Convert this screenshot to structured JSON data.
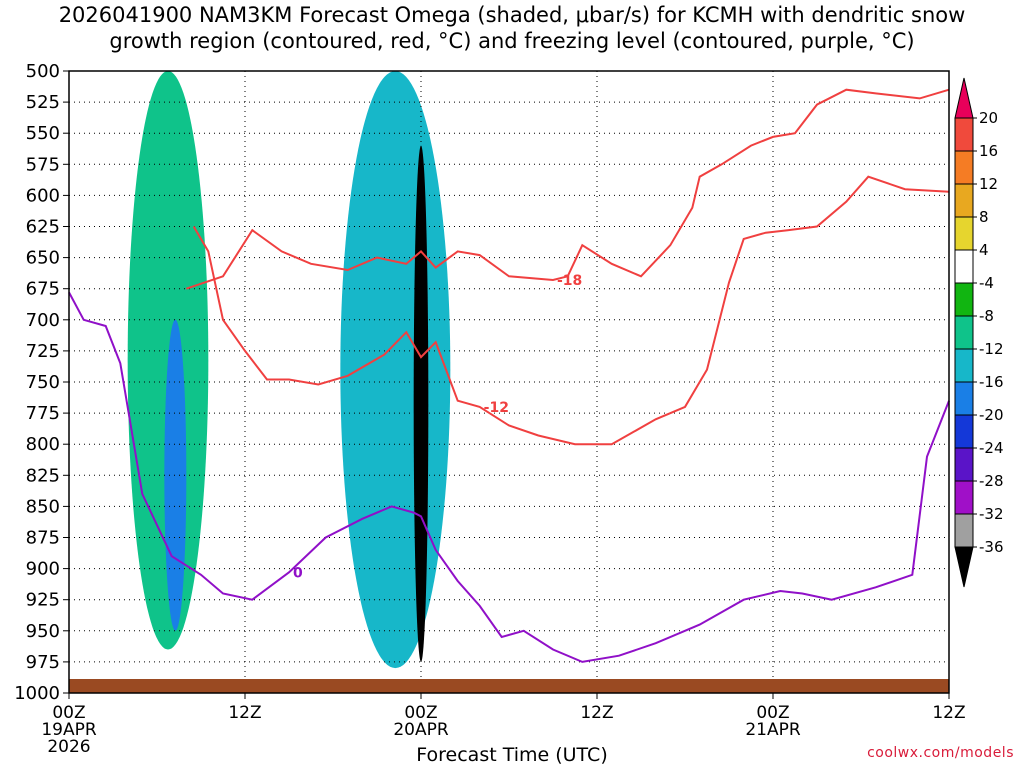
{
  "title": {
    "line1": "2026041900 NAM3KM Forecast Omega (shaded, μbar/s) for KCMH with dendritic snow",
    "line2": "growth region (contoured, red, °C) and freezing level (contoured, purple, °C)"
  },
  "credit": "coolwx.com/models",
  "chart_data": {
    "type": "contour",
    "title": "2026041900 NAM3KM Forecast Omega (shaded, μbar/s) for KCMH with dendritic snow growth region (contoured, red, °C) and freezing level (contoured, purple, °C)",
    "xlabel": "Forecast Time (UTC)",
    "ylabel": "Pressure (hPa)",
    "xlim": [
      0,
      60
    ],
    "ylim": [
      1000,
      500
    ],
    "x_ticks": [
      {
        "hour": 0,
        "lines": [
          "00Z",
          "19APR",
          "2026"
        ]
      },
      {
        "hour": 12,
        "lines": [
          "12Z"
        ]
      },
      {
        "hour": 24,
        "lines": [
          "00Z",
          "20APR"
        ]
      },
      {
        "hour": 36,
        "lines": [
          "12Z"
        ]
      },
      {
        "hour": 48,
        "lines": [
          "00Z",
          "21APR"
        ]
      },
      {
        "hour": 60,
        "lines": [
          "12Z"
        ]
      }
    ],
    "y_ticks": [
      500,
      525,
      550,
      575,
      600,
      625,
      650,
      675,
      700,
      725,
      750,
      775,
      800,
      825,
      850,
      875,
      900,
      925,
      950,
      975,
      1000
    ],
    "colorbar": {
      "unit": "μbar/s",
      "labels": [
        "20",
        "16",
        "12",
        "8",
        "4",
        "-4",
        "-8",
        "-12",
        "-16",
        "-20",
        "-24",
        "-28",
        "-32",
        "-36"
      ],
      "colors": [
        "#e8005a",
        "#f04a3c",
        "#f57c24",
        "#e8a820",
        "#e6d52e",
        "#ffffff",
        "#11b511",
        "#0fc38a",
        "#17b7c9",
        "#1a7fe6",
        "#1438d8",
        "#5a14c8",
        "#a010c8",
        "#a0a0a0",
        "#000000"
      ]
    },
    "omega_regions": [
      {
        "value": -8,
        "x": [
          4.0,
          9.5
        ],
        "p": [
          500,
          965
        ]
      },
      {
        "value": -16,
        "x": [
          6.5,
          8.0
        ],
        "p": [
          700,
          950
        ]
      },
      {
        "value": -12,
        "x": [
          18.5,
          26.0
        ],
        "p": [
          500,
          980
        ]
      },
      {
        "value": -36,
        "x": [
          23.5,
          24.5
        ],
        "p": [
          560,
          975
        ]
      },
      {
        "value": 4,
        "x": [
          28.0,
          32.0
        ],
        "p": [
          750,
          930
        ]
      },
      {
        "value": 4,
        "x": [
          34.5,
          35.5
        ],
        "p": [
          500,
          545
        ]
      },
      {
        "value": 4,
        "x": [
          52.0,
          54.5
        ],
        "p": [
          500,
          600
        ]
      },
      {
        "value": 4,
        "x": [
          58.5,
          60.0
        ],
        "p": [
          628,
          730
        ]
      }
    ],
    "series": [
      {
        "name": "-18",
        "type": "contour",
        "color": "#f04040",
        "label": "-18",
        "x": [
          8.0,
          10.5,
          12.5,
          14.5,
          16.5,
          19.0,
          21.0,
          23.0,
          24.0,
          25.0,
          26.5,
          28.0,
          30.0,
          33.0,
          34.0,
          35.0,
          37.0,
          39.0,
          41.0,
          42.5,
          43.0,
          44.5,
          46.5,
          48.0,
          49.5,
          51.0,
          53.0,
          55.0,
          58.0,
          60.0
        ],
        "p": [
          675,
          665,
          628,
          645,
          655,
          660,
          650,
          655,
          645,
          658,
          645,
          648,
          665,
          668,
          665,
          640,
          655,
          665,
          640,
          610,
          585,
          575,
          560,
          553,
          550,
          527,
          515,
          518,
          522,
          515
        ]
      },
      {
        "name": "-12",
        "type": "contour",
        "color": "#f04040",
        "label": "-12",
        "x": [
          8.5,
          9.5,
          10.5,
          12.0,
          13.5,
          15.0,
          17.0,
          19.0,
          21.5,
          23.0,
          24.0,
          25.0,
          26.5,
          28.0,
          30.0,
          32.0,
          34.5,
          37.0,
          38.5,
          40.0,
          42.0,
          43.5,
          45.0,
          46.0,
          47.5,
          49.0,
          51.0,
          53.0,
          54.5,
          57.0,
          60.0
        ],
        "p": [
          625,
          645,
          700,
          725,
          748,
          748,
          752,
          745,
          728,
          710,
          730,
          718,
          765,
          770,
          785,
          793,
          800,
          800,
          790,
          780,
          770,
          740,
          670,
          635,
          630,
          628,
          625,
          605,
          585,
          595,
          597
        ]
      },
      {
        "name": "0",
        "type": "contour",
        "color": "#9010c8",
        "label": "0",
        "x": [
          0.0,
          1.0,
          2.5,
          3.5,
          5.0,
          7.0,
          9.0,
          10.5,
          12.5,
          15.0,
          17.5,
          20.0,
          22.0,
          23.5,
          24.0,
          25.0,
          26.5,
          28.0,
          29.5,
          31.0,
          33.0,
          35.0,
          37.5,
          40.0,
          43.0,
          46.0,
          48.5,
          50.0,
          52.0,
          55.0,
          57.5,
          58.5,
          60.0
        ],
        "p": [
          678,
          700,
          705,
          735,
          840,
          890,
          905,
          920,
          925,
          903,
          875,
          860,
          850,
          855,
          858,
          885,
          910,
          930,
          955,
          950,
          965,
          975,
          970,
          960,
          945,
          925,
          918,
          920,
          925,
          915,
          905,
          810,
          765
        ]
      }
    ]
  }
}
